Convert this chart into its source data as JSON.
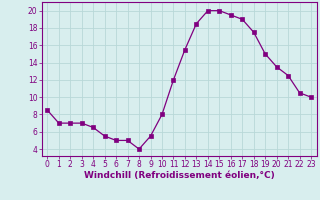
{
  "x": [
    0,
    1,
    2,
    3,
    4,
    5,
    6,
    7,
    8,
    9,
    10,
    11,
    12,
    13,
    14,
    15,
    16,
    17,
    18,
    19,
    20,
    21,
    22,
    23
  ],
  "y": [
    8.5,
    7.0,
    7.0,
    7.0,
    6.5,
    5.5,
    5.0,
    5.0,
    4.0,
    5.5,
    8.0,
    12.0,
    15.5,
    18.5,
    20.0,
    20.0,
    19.5,
    19.0,
    17.5,
    15.0,
    13.5,
    12.5,
    10.5,
    10.0
  ],
  "xlim": [
    -0.5,
    23.5
  ],
  "ylim": [
    3.2,
    21.0
  ],
  "yticks": [
    4,
    6,
    8,
    10,
    12,
    14,
    16,
    18,
    20
  ],
  "xticks": [
    0,
    1,
    2,
    3,
    4,
    5,
    6,
    7,
    8,
    9,
    10,
    11,
    12,
    13,
    14,
    15,
    16,
    17,
    18,
    19,
    20,
    21,
    22,
    23
  ],
  "xlabel": "Windchill (Refroidissement éolien,°C)",
  "line_color": "#800080",
  "marker": "s",
  "marker_size": 2.2,
  "bg_color": "#d8eeee",
  "grid_color": "#b8d8d8",
  "tick_fontsize": 5.5,
  "xlabel_fontsize": 6.5
}
